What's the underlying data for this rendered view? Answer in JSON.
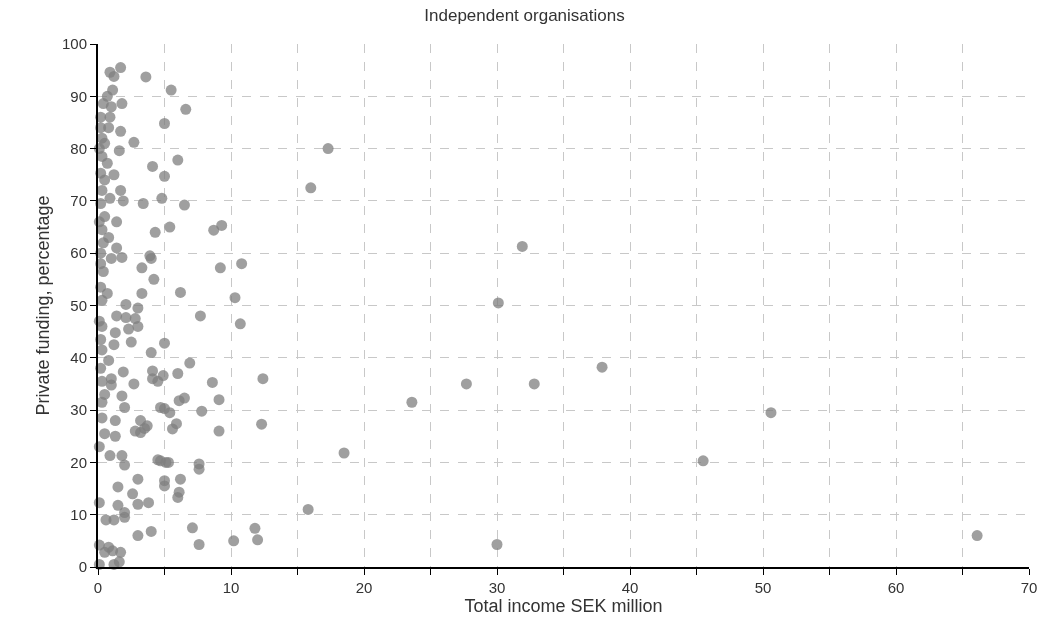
{
  "chart_data": {
    "type": "scatter",
    "title": "Independent organisations",
    "xlabel": "Total income SEK million",
    "ylabel": "Private funding, percentage",
    "xlim": [
      0,
      70
    ],
    "ylim": [
      0,
      100
    ],
    "xticks": [
      0,
      {
        "value": 5,
        "label": null
      },
      10,
      {
        "value": 15,
        "label": null
      },
      20,
      {
        "value": 25,
        "label": null
      },
      30,
      {
        "value": 35,
        "label": null
      },
      40,
      {
        "value": 45,
        "label": null
      },
      50,
      {
        "value": 55,
        "label": null
      },
      60,
      {
        "value": 65,
        "label": null
      },
      70
    ],
    "yticks": [
      0,
      10,
      20,
      30,
      40,
      50,
      60,
      70,
      80,
      90,
      100
    ],
    "grid": true,
    "marker": "circle",
    "series": [
      {
        "color": "#7f7f7f",
        "x": [
          66.1,
          50.6,
          45.5,
          37.9,
          32.8,
          31.9,
          30.1,
          30,
          27.7,
          23.6,
          18.5,
          17.3,
          16,
          15.8,
          12.4,
          12.3,
          12,
          11.8,
          10.8,
          10.7,
          10.3,
          10.2,
          9.3,
          9.2,
          9.1,
          9.1,
          8.7,
          8.6,
          7.8,
          7.7,
          7.6,
          7.6,
          7.6,
          7.1,
          6.9,
          6.6,
          6.5,
          6.5,
          6.2,
          6.2,
          6.1,
          6.1,
          6,
          6,
          6,
          5.9,
          5.6,
          5.5,
          5.4,
          5.4,
          5.3,
          5.1,
          5,
          5,
          5,
          5,
          5,
          5,
          4.9,
          4.8,
          4.7,
          4.7,
          4.5,
          4.5,
          4.3,
          4.2,
          4.1,
          4.1,
          4.1,
          4,
          4,
          4,
          3.9,
          3.8,
          3.7,
          3.6,
          3.5,
          3.4,
          3.3,
          3.3,
          3.2,
          3.2,
          3,
          3,
          3,
          3,
          3,
          2.8,
          2.8,
          2.7,
          2.7,
          2.6,
          2.5,
          2.3,
          2.1,
          2.1,
          2,
          2,
          2,
          2,
          1.9,
          1.9,
          1.8,
          1.8,
          1.8,
          1.8,
          1.7,
          1.7,
          1.7,
          1.7,
          1.6,
          1.5,
          1.5,
          1.4,
          1.4,
          1.4,
          1.3,
          1.3,
          1.3,
          1.2,
          1.2,
          1.2,
          1.2,
          1.1,
          1.1,
          1,
          1,
          1,
          1,
          0.9,
          0.9,
          0.9,
          0.9,
          0.8,
          0.8,
          0.8,
          0.8,
          0.7,
          0.7,
          0.7,
          0.6,
          0.5,
          0.5,
          0.5,
          0.5,
          0.5,
          0.5,
          0.4,
          0.4,
          0.4,
          0.3,
          0.3,
          0.3,
          0.3,
          0.3,
          0.3,
          0.3,
          0.3,
          0.3,
          0.3,
          0.2,
          0.2,
          0.2,
          0.2,
          0.2,
          0.2,
          0.2,
          0.2,
          0.2,
          0.1,
          0.1,
          0.1,
          0.1,
          0.1,
          0.1,
          0.1,
          1.2,
          1.6
        ],
        "values": [
          6,
          29.5,
          20.3,
          38.2,
          35,
          61.3,
          50.5,
          4.3,
          35,
          31.5,
          21.8,
          80,
          72.5,
          11,
          36,
          27.3,
          5.2,
          7.4,
          58,
          46.5,
          51.5,
          5,
          65.3,
          57.2,
          32,
          26,
          64.4,
          35.3,
          29.8,
          48,
          19.7,
          18.7,
          4.3,
          7.5,
          39,
          87.5,
          69.2,
          32.3,
          52.5,
          16.8,
          31.8,
          14.3,
          77.8,
          13.3,
          37,
          27.4,
          26.4,
          91.2,
          65,
          29.5,
          20,
          20,
          84.8,
          74.7,
          42.8,
          30.3,
          16.5,
          15.5,
          36.6,
          70.5,
          30.5,
          20.3,
          20.5,
          35.5,
          64,
          55,
          76.6,
          37.5,
          36,
          59,
          41,
          6.8,
          59.5,
          12.3,
          27,
          93.7,
          26.5,
          69.5,
          57.2,
          52.3,
          28,
          25.7,
          49.5,
          46,
          16.8,
          12,
          6,
          47.5,
          26,
          81.2,
          35,
          14,
          43,
          45.5,
          50.2,
          47.7,
          30.5,
          19.5,
          10.4,
          9.5,
          70,
          37.3,
          88.6,
          59.2,
          32.7,
          21.3,
          95.5,
          83.3,
          72,
          2.8,
          79.6,
          15.3,
          11.8,
          66,
          61,
          48,
          44.8,
          28,
          25,
          93.8,
          75,
          42.5,
          9,
          91.2,
          3.1,
          88,
          59,
          36,
          34.8,
          94.6,
          86,
          70.5,
          21.3,
          84,
          63,
          39.5,
          3.8,
          90,
          77.2,
          52.3,
          9,
          81,
          74,
          67,
          33,
          25.5,
          2.8,
          88.6,
          62,
          56.5,
          82,
          78.5,
          72,
          64.5,
          51,
          46,
          41.5,
          35.5,
          31.5,
          28.5,
          86,
          84,
          75.3,
          69.5,
          60,
          58,
          53.5,
          43.5,
          38,
          80,
          66,
          47,
          23,
          12.3,
          4.2,
          0.5,
          0.5,
          1
        ]
      }
    ]
  }
}
